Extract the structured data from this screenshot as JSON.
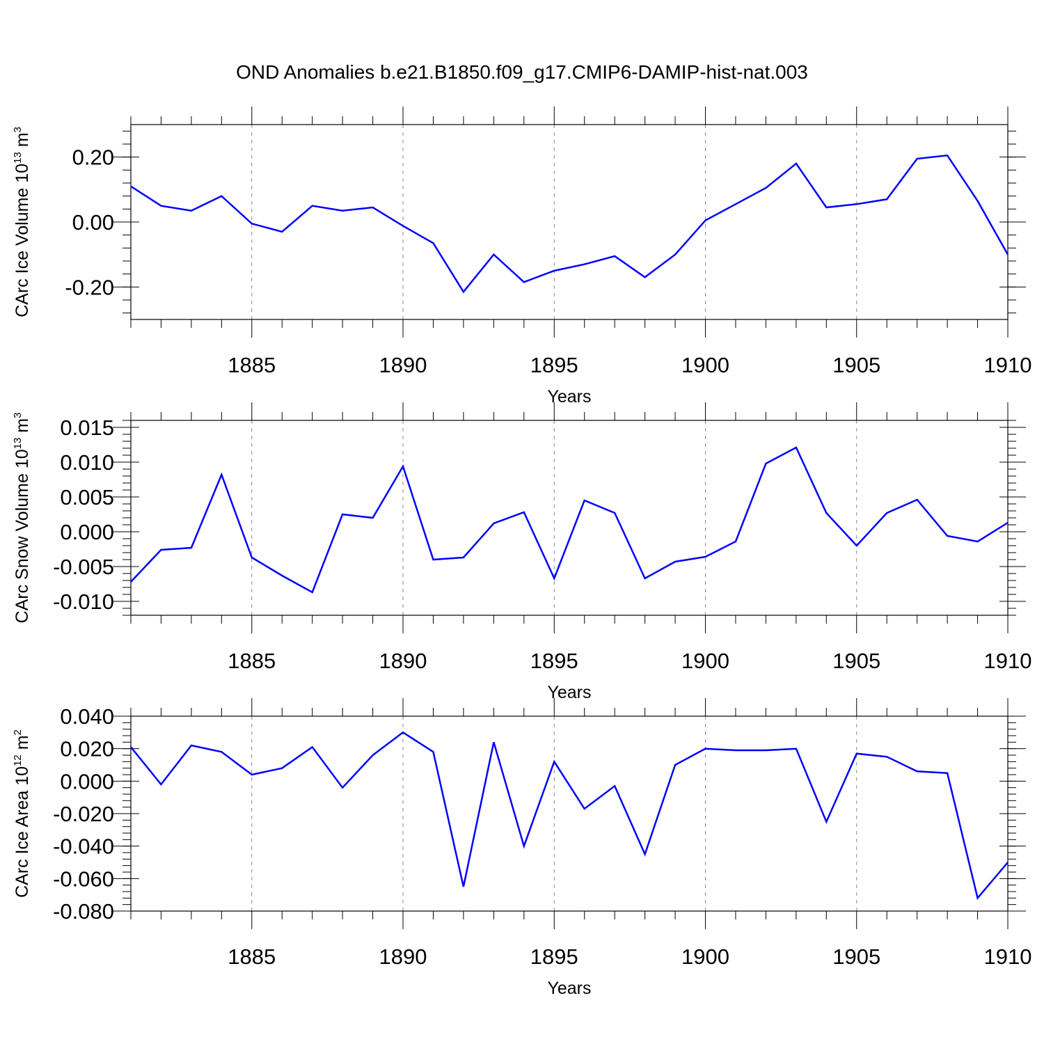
{
  "title": "OND Anomalies b.e21.B1850.f09_g17.CMIP6-DAMIP-hist-nat.003",
  "colors": {
    "line": "#0000ff",
    "axis": "#000000",
    "grid": "#888888"
  },
  "chart_data": [
    {
      "type": "line",
      "name": "ice-volume",
      "ylabel": "CArc Ice Volume 10",
      "ylabel_exp": "13",
      "ylabel_unit": " m",
      "ylabel_unit_exp": "3",
      "xlabel": "Years",
      "xlim": [
        1881,
        1910
      ],
      "ylim": [
        -0.3,
        0.3
      ],
      "xticks": [
        "1885",
        "1890",
        "1895",
        "1900",
        "1905",
        "1910"
      ],
      "yticks": [
        "0.20",
        "0.00",
        "-0.20"
      ],
      "ytick_values": [
        0.2,
        0.0,
        -0.2
      ],
      "x": [
        1881,
        1882,
        1883,
        1884,
        1885,
        1886,
        1887,
        1888,
        1889,
        1890,
        1891,
        1892,
        1893,
        1894,
        1895,
        1896,
        1897,
        1898,
        1899,
        1900,
        1901,
        1902,
        1903,
        1904,
        1905,
        1906,
        1907,
        1908,
        1909,
        1910
      ],
      "values": [
        0.11,
        0.05,
        0.035,
        0.08,
        -0.005,
        -0.03,
        0.05,
        0.035,
        0.045,
        -0.012,
        -0.065,
        -0.215,
        -0.1,
        -0.185,
        -0.15,
        -0.13,
        -0.105,
        -0.17,
        -0.1,
        0.005,
        0.055,
        0.105,
        0.18,
        0.045,
        0.055,
        0.07,
        0.195,
        0.205,
        0.065,
        -0.1
      ]
    },
    {
      "type": "line",
      "name": "snow-volume",
      "ylabel": "CArc Snow Volume 10",
      "ylabel_exp": "13",
      "ylabel_unit": " m",
      "ylabel_unit_exp": "3",
      "xlabel": "Years",
      "xlim": [
        1881,
        1910
      ],
      "ylim": [
        -0.012,
        0.016
      ],
      "xticks": [
        "1885",
        "1890",
        "1895",
        "1900",
        "1905",
        "1910"
      ],
      "yticks": [
        "0.015",
        "0.010",
        "0.005",
        "0.000",
        "-0.005",
        "-0.010"
      ],
      "ytick_values": [
        0.015,
        0.01,
        0.005,
        0.0,
        -0.005,
        -0.01
      ],
      "x": [
        1881,
        1882,
        1883,
        1884,
        1885,
        1886,
        1887,
        1888,
        1889,
        1890,
        1891,
        1892,
        1893,
        1894,
        1895,
        1896,
        1897,
        1898,
        1899,
        1900,
        1901,
        1902,
        1903,
        1904,
        1905,
        1906,
        1907,
        1908,
        1909,
        1910
      ],
      "values": [
        -0.0072,
        -0.0026,
        -0.0023,
        0.0082,
        -0.0037,
        -0.0063,
        -0.0087,
        0.0025,
        0.002,
        0.0094,
        -0.004,
        -0.0037,
        0.0012,
        0.0028,
        -0.0067,
        0.0045,
        0.0027,
        -0.0067,
        -0.0043,
        -0.0036,
        -0.0014,
        0.0098,
        0.0121,
        0.0027,
        -0.002,
        0.0027,
        0.0046,
        -0.0006,
        -0.0014,
        0.0013
      ]
    },
    {
      "type": "line",
      "name": "ice-area",
      "ylabel": "CArc Ice Area 10",
      "ylabel_exp": "12",
      "ylabel_unit": " m",
      "ylabel_unit_exp": "2",
      "xlabel": "Years",
      "xlim": [
        1881,
        1910
      ],
      "ylim": [
        -0.08,
        0.04
      ],
      "xticks": [
        "1885",
        "1890",
        "1895",
        "1900",
        "1905",
        "1910"
      ],
      "yticks": [
        "0.040",
        "0.020",
        "0.000",
        "-0.020",
        "-0.040",
        "-0.060",
        "-0.080"
      ],
      "ytick_values": [
        0.04,
        0.02,
        0.0,
        -0.02,
        -0.04,
        -0.06,
        -0.08
      ],
      "x": [
        1881,
        1882,
        1883,
        1884,
        1885,
        1886,
        1887,
        1888,
        1889,
        1890,
        1891,
        1892,
        1893,
        1894,
        1895,
        1896,
        1897,
        1898,
        1899,
        1900,
        1901,
        1902,
        1903,
        1904,
        1905,
        1906,
        1907,
        1908,
        1909,
        1910
      ],
      "values": [
        0.021,
        -0.002,
        0.022,
        0.018,
        0.004,
        0.008,
        0.021,
        -0.004,
        0.016,
        0.03,
        0.018,
        -0.065,
        0.024,
        -0.04,
        0.012,
        -0.017,
        -0.003,
        -0.045,
        0.01,
        0.02,
        0.019,
        0.019,
        0.02,
        -0.025,
        0.017,
        0.015,
        0.006,
        0.005,
        -0.072,
        -0.05
      ]
    }
  ]
}
